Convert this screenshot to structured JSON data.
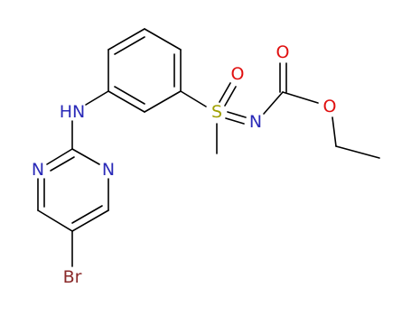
{
  "atoms": [
    {
      "label": "HN"
    },
    {
      "label": "N"
    },
    {
      "label": "N"
    },
    {
      "label": "Br"
    },
    {
      "label": "S"
    },
    {
      "label": "O"
    },
    {
      "label": "N"
    },
    {
      "label": "O"
    },
    {
      "label": "O"
    }
  ]
}
